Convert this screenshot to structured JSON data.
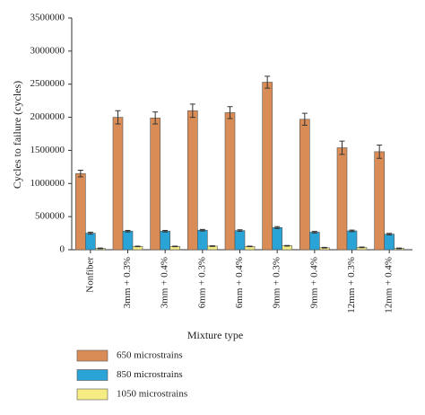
{
  "chart_data": {
    "type": "bar",
    "x_label": "Mixture type",
    "y_label": "Cycles to failure (cycles)",
    "categories": [
      "Nonfiber",
      "3mm + 0.3%",
      "3mm + 0.4%",
      "6mm + 0.3%",
      "6mm + 0.4%",
      "9mm + 0.3%",
      "9mm + 0.4%",
      "12mm + 0.3%",
      "12mm + 0.4%"
    ],
    "series": [
      {
        "name": "650 microstrains",
        "color": "#d98c55",
        "values": [
          1150000,
          2000000,
          1990000,
          2100000,
          2070000,
          2530000,
          1970000,
          1540000,
          1480000
        ],
        "errors": [
          50000,
          100000,
          90000,
          100000,
          90000,
          90000,
          90000,
          100000,
          100000
        ]
      },
      {
        "name": "850 microstrains",
        "color": "#2aa4d6",
        "values": [
          250000,
          280000,
          280000,
          295000,
          290000,
          335000,
          265000,
          285000,
          235000
        ],
        "errors": [
          15000,
          12000,
          12000,
          12000,
          12000,
          15000,
          12000,
          12000,
          12000
        ]
      },
      {
        "name": "1050 microstrains",
        "color": "#f5ec84",
        "values": [
          20000,
          50000,
          50000,
          55000,
          50000,
          60000,
          30000,
          35000,
          20000
        ],
        "errors": [
          5000,
          5000,
          5000,
          5000,
          5000,
          5000,
          5000,
          5000,
          5000
        ]
      }
    ],
    "ylim": [
      0,
      3500000
    ],
    "yticks": [
      0,
      500000,
      1000000,
      1500000,
      2000000,
      2500000,
      3000000,
      3500000
    ],
    "grid": false,
    "legend": "bottom"
  }
}
